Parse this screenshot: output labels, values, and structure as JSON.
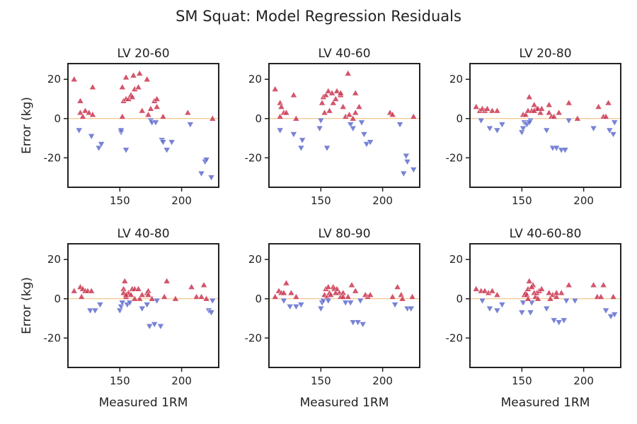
{
  "chart_data": {
    "type": "scatter",
    "title": "SM Squat: Model Regression Residuals",
    "xlabel": "Measured 1RM",
    "ylabel": "Error (kg)",
    "xlim": [
      108,
      230
    ],
    "ylim": [
      -35,
      28
    ],
    "xticks": [
      150,
      200
    ],
    "yticks": [
      20,
      0,
      -20
    ],
    "zero_line_color": "#f0b96b",
    "positive_color": "#c9304a",
    "negative_color": "#5a68cc",
    "positive_marker": "triangle-up",
    "negative_marker": "triangle-down",
    "grid": false,
    "legend": "none",
    "panels": [
      {
        "title": "LV 20-60",
        "points": [
          [
            113,
            20
          ],
          [
            118,
            9
          ],
          [
            118,
            3
          ],
          [
            120,
            1
          ],
          [
            122,
            4
          ],
          [
            125,
            3
          ],
          [
            128,
            2
          ],
          [
            128,
            16
          ],
          [
            117,
            -6
          ],
          [
            127,
            -9
          ],
          [
            133,
            -15
          ],
          [
            135,
            -13
          ],
          [
            151,
            -7
          ],
          [
            151,
            -6
          ],
          [
            152,
            1
          ],
          [
            152,
            16
          ],
          [
            153,
            9
          ],
          [
            155,
            21
          ],
          [
            155,
            10
          ],
          [
            157,
            10
          ],
          [
            159,
            12
          ],
          [
            160,
            11
          ],
          [
            161,
            22
          ],
          [
            162,
            15
          ],
          [
            165,
            16
          ],
          [
            166,
            23
          ],
          [
            168,
            4
          ],
          [
            172,
            20
          ],
          [
            173,
            2
          ],
          [
            175,
            5
          ],
          [
            175,
            -1
          ],
          [
            176,
            -2
          ],
          [
            178,
            9
          ],
          [
            179,
            -2
          ],
          [
            180,
            10
          ],
          [
            180,
            6
          ],
          [
            184,
            -11
          ],
          [
            185,
            -12
          ],
          [
            185,
            1
          ],
          [
            188,
            -16
          ],
          [
            192,
            -12
          ],
          [
            205,
            3
          ],
          [
            207,
            -3
          ],
          [
            216,
            -28
          ],
          [
            219,
            -22
          ],
          [
            220,
            -21
          ],
          [
            224,
            -30
          ],
          [
            225,
            0
          ],
          [
            155,
            -16
          ]
        ]
      },
      {
        "title": "LV 40-60",
        "points": [
          [
            113,
            15
          ],
          [
            117,
            8
          ],
          [
            117,
            1
          ],
          [
            118,
            6
          ],
          [
            120,
            3
          ],
          [
            122,
            3
          ],
          [
            128,
            12
          ],
          [
            130,
            0
          ],
          [
            117,
            -6
          ],
          [
            128,
            -8
          ],
          [
            134,
            -15
          ],
          [
            135,
            -11
          ],
          [
            149,
            -5
          ],
          [
            150,
            -1
          ],
          [
            151,
            8
          ],
          [
            152,
            11
          ],
          [
            153,
            3
          ],
          [
            154,
            12
          ],
          [
            156,
            14
          ],
          [
            157,
            4
          ],
          [
            159,
            13
          ],
          [
            160,
            8
          ],
          [
            162,
            10
          ],
          [
            163,
            14
          ],
          [
            166,
            12
          ],
          [
            166,
            13
          ],
          [
            168,
            6
          ],
          [
            170,
            1
          ],
          [
            172,
            23
          ],
          [
            173,
            2
          ],
          [
            174,
            -3
          ],
          [
            176,
            0
          ],
          [
            176,
            -5
          ],
          [
            178,
            3
          ],
          [
            178,
            13
          ],
          [
            181,
            6
          ],
          [
            183,
            -2
          ],
          [
            185,
            -8
          ],
          [
            187,
            -13
          ],
          [
            190,
            -12
          ],
          [
            206,
            3
          ],
          [
            208,
            2
          ],
          [
            214,
            -3
          ],
          [
            217,
            -28
          ],
          [
            219,
            -19
          ],
          [
            220,
            -22
          ],
          [
            225,
            -26
          ],
          [
            225,
            1
          ],
          [
            155,
            -15
          ]
        ]
      },
      {
        "title": "LV 20-80",
        "points": [
          [
            113,
            6
          ],
          [
            116,
            4
          ],
          [
            118,
            5
          ],
          [
            120,
            4
          ],
          [
            122,
            5
          ],
          [
            126,
            4
          ],
          [
            130,
            4
          ],
          [
            117,
            -1
          ],
          [
            124,
            -5
          ],
          [
            130,
            -6
          ],
          [
            134,
            -3
          ],
          [
            150,
            -7
          ],
          [
            151,
            -5
          ],
          [
            151,
            2
          ],
          [
            152,
            -2
          ],
          [
            153,
            2
          ],
          [
            154,
            -3
          ],
          [
            155,
            4
          ],
          [
            156,
            11
          ],
          [
            157,
            -1
          ],
          [
            158,
            4
          ],
          [
            160,
            7
          ],
          [
            162,
            5
          ],
          [
            163,
            5
          ],
          [
            165,
            3
          ],
          [
            166,
            5
          ],
          [
            170,
            -6
          ],
          [
            172,
            3
          ],
          [
            174,
            1
          ],
          [
            175,
            -15
          ],
          [
            178,
            -15
          ],
          [
            180,
            3
          ],
          [
            182,
            -16
          ],
          [
            185,
            -16
          ],
          [
            188,
            8
          ],
          [
            188,
            -1
          ],
          [
            195,
            0
          ],
          [
            208,
            -5
          ],
          [
            212,
            6
          ],
          [
            216,
            1
          ],
          [
            218,
            1
          ],
          [
            220,
            8
          ],
          [
            221,
            -6
          ],
          [
            224,
            -8
          ],
          [
            225,
            -2
          ],
          [
            156,
            -2
          ],
          [
            160,
            4
          ],
          [
            172,
            7
          ],
          [
            176,
            1
          ]
        ]
      },
      {
        "title": "LV 40-80",
        "points": [
          [
            113,
            4
          ],
          [
            118,
            6
          ],
          [
            120,
            5
          ],
          [
            122,
            4
          ],
          [
            124,
            4
          ],
          [
            127,
            4
          ],
          [
            119,
            1
          ],
          [
            126,
            -6
          ],
          [
            130,
            -6
          ],
          [
            134,
            -3
          ],
          [
            150,
            -6
          ],
          [
            151,
            -4
          ],
          [
            152,
            -2
          ],
          [
            153,
            5
          ],
          [
            153,
            3
          ],
          [
            154,
            9
          ],
          [
            155,
            1
          ],
          [
            156,
            -3
          ],
          [
            157,
            3
          ],
          [
            158,
            -2
          ],
          [
            159,
            2
          ],
          [
            160,
            5
          ],
          [
            162,
            5
          ],
          [
            165,
            5
          ],
          [
            166,
            0
          ],
          [
            168,
            -5
          ],
          [
            172,
            3
          ],
          [
            173,
            4
          ],
          [
            173,
            2
          ],
          [
            174,
            -14
          ],
          [
            176,
            0
          ],
          [
            178,
            -13
          ],
          [
            180,
            -1
          ],
          [
            183,
            -14
          ],
          [
            186,
            1
          ],
          [
            188,
            9
          ],
          [
            195,
            0
          ],
          [
            208,
            6
          ],
          [
            212,
            1
          ],
          [
            216,
            1
          ],
          [
            218,
            7
          ],
          [
            220,
            0
          ],
          [
            222,
            -6
          ],
          [
            224,
            -7
          ],
          [
            225,
            -1
          ],
          [
            155,
            2
          ],
          [
            162,
            0
          ],
          [
            168,
            2
          ],
          [
            172,
            -3
          ]
        ]
      },
      {
        "title": "LV 80-90",
        "points": [
          [
            113,
            1
          ],
          [
            116,
            4
          ],
          [
            118,
            3
          ],
          [
            120,
            3
          ],
          [
            122,
            8
          ],
          [
            126,
            3
          ],
          [
            130,
            1
          ],
          [
            120,
            -1
          ],
          [
            125,
            -4
          ],
          [
            130,
            -4
          ],
          [
            134,
            -3
          ],
          [
            150,
            -5
          ],
          [
            151,
            -2
          ],
          [
            152,
            -1
          ],
          [
            153,
            2
          ],
          [
            154,
            5
          ],
          [
            155,
            1
          ],
          [
            156,
            6
          ],
          [
            157,
            3
          ],
          [
            158,
            2
          ],
          [
            160,
            6
          ],
          [
            161,
            5
          ],
          [
            163,
            5
          ],
          [
            165,
            3
          ],
          [
            166,
            1
          ],
          [
            168,
            3
          ],
          [
            170,
            -2
          ],
          [
            172,
            1
          ],
          [
            175,
            7
          ],
          [
            176,
            -12
          ],
          [
            178,
            4
          ],
          [
            180,
            -12
          ],
          [
            182,
            -1
          ],
          [
            184,
            -13
          ],
          [
            186,
            2
          ],
          [
            188,
            1
          ],
          [
            190,
            2
          ],
          [
            208,
            1
          ],
          [
            210,
            -3
          ],
          [
            212,
            6
          ],
          [
            215,
            2
          ],
          [
            216,
            0
          ],
          [
            220,
            -5
          ],
          [
            223,
            -5
          ],
          [
            224,
            1
          ],
          [
            156,
            -1
          ],
          [
            162,
            3
          ],
          [
            168,
            1
          ],
          [
            174,
            -2
          ]
        ]
      },
      {
        "title": "LV 40-60-80",
        "points": [
          [
            113,
            5
          ],
          [
            117,
            4
          ],
          [
            120,
            4
          ],
          [
            123,
            3
          ],
          [
            126,
            4
          ],
          [
            130,
            2
          ],
          [
            118,
            -1
          ],
          [
            124,
            -5
          ],
          [
            130,
            -6
          ],
          [
            134,
            -3
          ],
          [
            150,
            -7
          ],
          [
            151,
            -2
          ],
          [
            152,
            2
          ],
          [
            153,
            3
          ],
          [
            154,
            2
          ],
          [
            155,
            5
          ],
          [
            156,
            9
          ],
          [
            157,
            -7
          ],
          [
            158,
            -2
          ],
          [
            159,
            7
          ],
          [
            160,
            3
          ],
          [
            161,
            1
          ],
          [
            162,
            3
          ],
          [
            164,
            4
          ],
          [
            166,
            5
          ],
          [
            170,
            -5
          ],
          [
            172,
            3
          ],
          [
            175,
            2
          ],
          [
            176,
            -11
          ],
          [
            178,
            1
          ],
          [
            180,
            -12
          ],
          [
            182,
            3
          ],
          [
            184,
            -11
          ],
          [
            186,
            -1
          ],
          [
            188,
            7
          ],
          [
            193,
            -1
          ],
          [
            208,
            7
          ],
          [
            211,
            1
          ],
          [
            214,
            1
          ],
          [
            216,
            7
          ],
          [
            218,
            -6
          ],
          [
            222,
            -9
          ],
          [
            224,
            1
          ],
          [
            225,
            -8
          ],
          [
            155,
            0
          ],
          [
            158,
            6
          ],
          [
            163,
            0
          ],
          [
            173,
            0
          ],
          [
            178,
            3
          ]
        ]
      }
    ]
  }
}
